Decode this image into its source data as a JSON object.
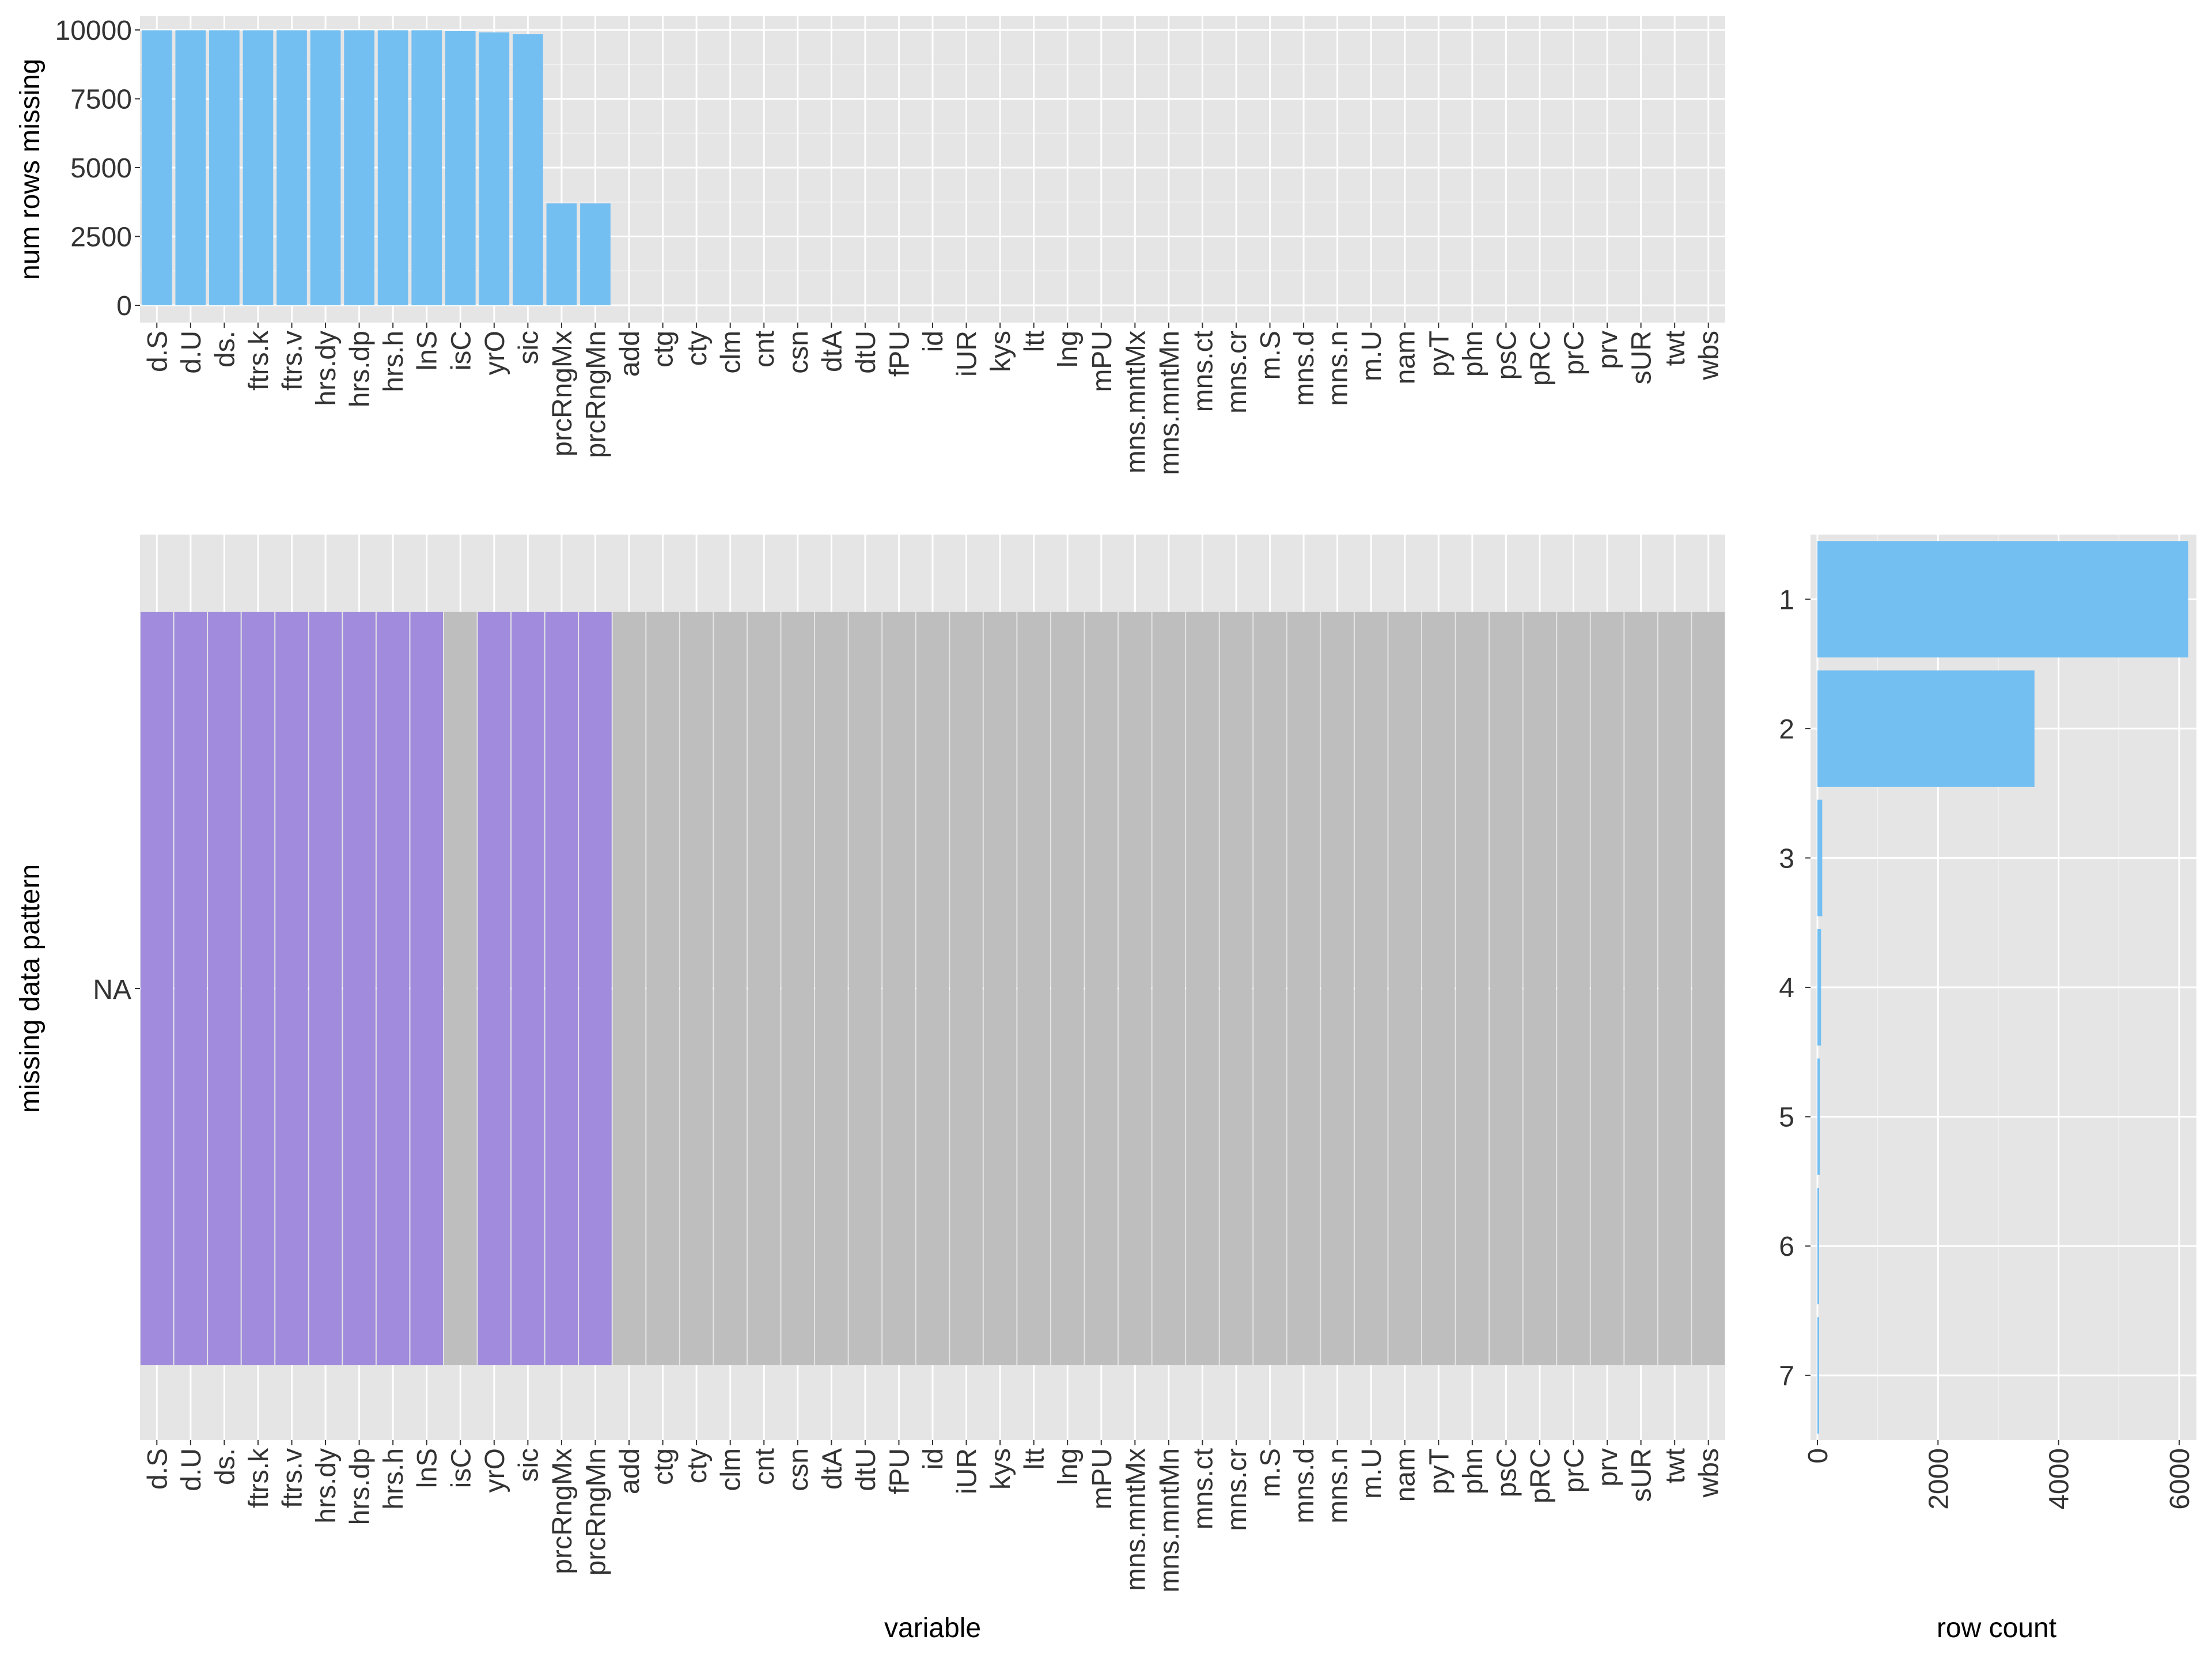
{
  "chart_data": [
    {
      "type": "bar",
      "ylabel": "num rows missing",
      "ylim": [
        0,
        10500
      ],
      "yticks": [
        0,
        2500,
        5000,
        7500,
        10000
      ],
      "categories": [
        "d.S",
        "d.U",
        "ds.",
        "ftrs.k",
        "ftrs.v",
        "hrs.dy",
        "hrs.dp",
        "hrs.h",
        "lnS",
        "isC",
        "yrO",
        "sic",
        "prcRngMx",
        "prcRngMn",
        "add",
        "ctg",
        "cty",
        "clm",
        "cnt",
        "csn",
        "dtA",
        "dtU",
        "fPU",
        "id",
        "iUR",
        "kys",
        "ltt",
        "lng",
        "mPU",
        "mns.mntMx",
        "mns.mntMn",
        "mns.ct",
        "mns.cr",
        "m.S",
        "mns.d",
        "mns.n",
        "m.U",
        "nam",
        "pyT",
        "phn",
        "psC",
        "pRC",
        "prC",
        "prv",
        "sUR",
        "twt",
        "wbs"
      ],
      "values": [
        9990,
        9990,
        9990,
        9990,
        9990,
        9990,
        9990,
        9990,
        9990,
        9960,
        9910,
        9850,
        3700,
        3700,
        0,
        0,
        0,
        0,
        0,
        0,
        0,
        0,
        0,
        0,
        0,
        0,
        0,
        0,
        0,
        0,
        0,
        0,
        0,
        0,
        0,
        0,
        0,
        0,
        0,
        0,
        0,
        0,
        0,
        0,
        0,
        0,
        0
      ],
      "color": "#74BFF2",
      "grid": true
    },
    {
      "type": "heatmap",
      "xlabel": "variable",
      "ylabel": "missing data pattern",
      "ytick_label": "NA",
      "categories": [
        "d.S",
        "d.U",
        "ds.",
        "ftrs.k",
        "ftrs.v",
        "hrs.dy",
        "hrs.dp",
        "hrs.h",
        "lnS",
        "isC",
        "yrO",
        "sic",
        "prcRngMx",
        "prcRngMn",
        "add",
        "ctg",
        "cty",
        "clm",
        "cnt",
        "csn",
        "dtA",
        "dtU",
        "fPU",
        "id",
        "iUR",
        "kys",
        "ltt",
        "lng",
        "mPU",
        "mns.mntMx",
        "mns.mntMn",
        "mns.ct",
        "mns.cr",
        "m.S",
        "mns.d",
        "mns.n",
        "m.U",
        "nam",
        "pyT",
        "phn",
        "psC",
        "pRC",
        "prC",
        "prv",
        "sUR",
        "twt",
        "wbs"
      ],
      "missing": [
        1,
        1,
        1,
        1,
        1,
        1,
        1,
        1,
        1,
        0,
        1,
        1,
        1,
        1,
        0,
        0,
        0,
        0,
        0,
        0,
        0,
        0,
        0,
        0,
        0,
        0,
        0,
        0,
        0,
        0,
        0,
        0,
        0,
        0,
        0,
        0,
        0,
        0,
        0,
        0,
        0,
        0,
        0,
        0,
        0,
        0,
        0
      ],
      "colors": {
        "missing": "#A08BDD",
        "present": "#BEBEBE"
      }
    },
    {
      "type": "bar",
      "orientation": "horizontal",
      "xlabel": "row count",
      "categories": [
        "1",
        "2",
        "3",
        "4",
        "5",
        "6",
        "7"
      ],
      "values": [
        6150,
        3600,
        80,
        60,
        40,
        15,
        10
      ],
      "xlim": [
        -100,
        6350
      ],
      "xticks": [
        0,
        2000,
        4000,
        6000
      ],
      "color": "#74BFF2",
      "grid": true
    }
  ]
}
